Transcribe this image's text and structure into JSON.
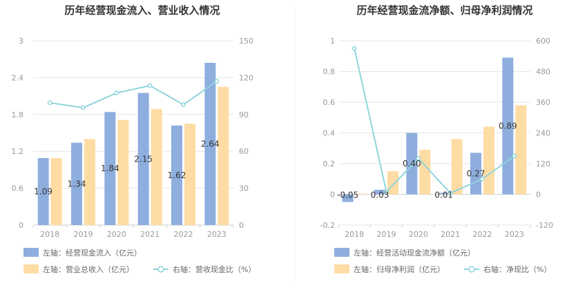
{
  "colors": {
    "bar_primary": "#8eaede",
    "bar_secondary": "#ffdca4",
    "line": "#8fd5dc",
    "grid": "#e6e6e6",
    "axis": "#cccccc",
    "divider": "#eeeeee"
  },
  "chart_data": [
    {
      "type": "bar",
      "title": "历年经营现金流入、营业收入情况",
      "categories": [
        "2018",
        "2019",
        "2020",
        "2021",
        "2022",
        "2023"
      ],
      "y_left": {
        "min": 0,
        "max": 3,
        "ticks": [
          "0",
          "0.6",
          "1.2",
          "1.8",
          "2.4",
          "3"
        ]
      },
      "y_right": {
        "min": 0,
        "max": 150,
        "ticks": [
          "0",
          "30",
          "60",
          "90",
          "120",
          "150"
        ]
      },
      "series": [
        {
          "name": "左轴：经营现金流入（亿元）",
          "type": "bar",
          "axis": "left",
          "values": [
            1.09,
            1.34,
            1.84,
            2.15,
            1.62,
            2.64
          ],
          "labels": [
            "1.09",
            "1.34",
            "1.84",
            "2.15",
            "1.62",
            "2.64"
          ]
        },
        {
          "name": "左轴：营业总收入（亿元）",
          "type": "bar",
          "axis": "left",
          "values": [
            1.09,
            1.4,
            1.71,
            1.89,
            1.65,
            2.25
          ]
        },
        {
          "name": "右轴：营收现金比（%）",
          "type": "line",
          "axis": "right",
          "values": [
            99.5,
            95.5,
            107.5,
            113.5,
            98.0,
            117.0
          ]
        }
      ],
      "grid": true,
      "legend_position": "bottom"
    },
    {
      "type": "bar",
      "title": "历年经营现金流净额、归母净利润情况",
      "categories": [
        "2018",
        "2019",
        "2020",
        "2021",
        "2022",
        "2023"
      ],
      "y_left": {
        "min": -0.2,
        "max": 1,
        "ticks": [
          "-0.2",
          "0",
          "0.2",
          "0.4",
          "0.6",
          "0.8",
          "1"
        ]
      },
      "y_right": {
        "min": -120,
        "max": 600,
        "ticks": [
          "-120",
          "0",
          "120",
          "240",
          "360",
          "480",
          "600"
        ]
      },
      "series": [
        {
          "name": "左轴：经营活动现金流净额（亿元）",
          "type": "bar",
          "axis": "left",
          "values": [
            -0.05,
            0.03,
            0.4,
            0.01,
            0.27,
            0.89
          ],
          "labels": [
            "-0.05",
            "0.03",
            "0.40",
            "0.01",
            "0.27",
            "0.89"
          ]
        },
        {
          "name": "左轴：归母净利润（亿元）",
          "type": "bar",
          "axis": "left",
          "values": [
            0.005,
            0.15,
            0.29,
            0.36,
            0.44,
            0.58
          ]
        },
        {
          "name": "右轴：净现比（%）",
          "type": "line",
          "axis": "right",
          "values": [
            570,
            10,
            140,
            5,
            60,
            150
          ]
        }
      ],
      "grid": true,
      "legend_position": "bottom"
    }
  ]
}
